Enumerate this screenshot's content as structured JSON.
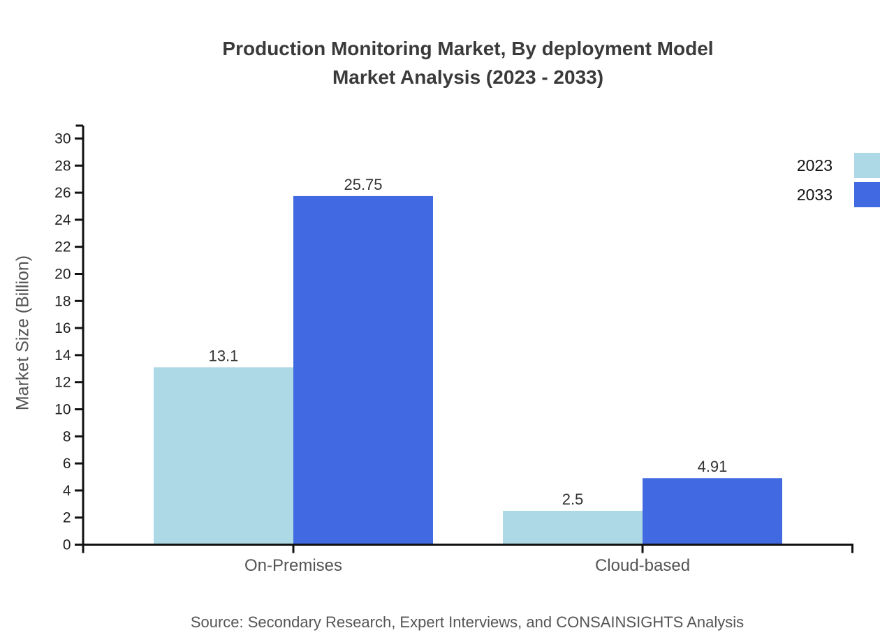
{
  "title": {
    "line1": "Production Monitoring Market, By deployment Model",
    "line2": "Market Analysis (2023 - 2033)"
  },
  "source_note": "Source: Secondary Research, Expert Interviews, and CONSAINSIGHTS Analysis",
  "chart_data": {
    "type": "bar",
    "categories": [
      "On-Premises",
      "Cloud-based"
    ],
    "series": [
      {
        "name": "2023",
        "color": "#ADD8E6",
        "values": [
          13.1,
          2.5
        ]
      },
      {
        "name": "2033",
        "color": "#4169E1",
        "values": [
          25.75,
          4.91
        ]
      }
    ],
    "ylabel": "Market Size (Billion)",
    "ylim": [
      0,
      30
    ],
    "ytick_step": 2,
    "grid": false,
    "legend_position": "top-right",
    "axis_color": "#111111"
  }
}
